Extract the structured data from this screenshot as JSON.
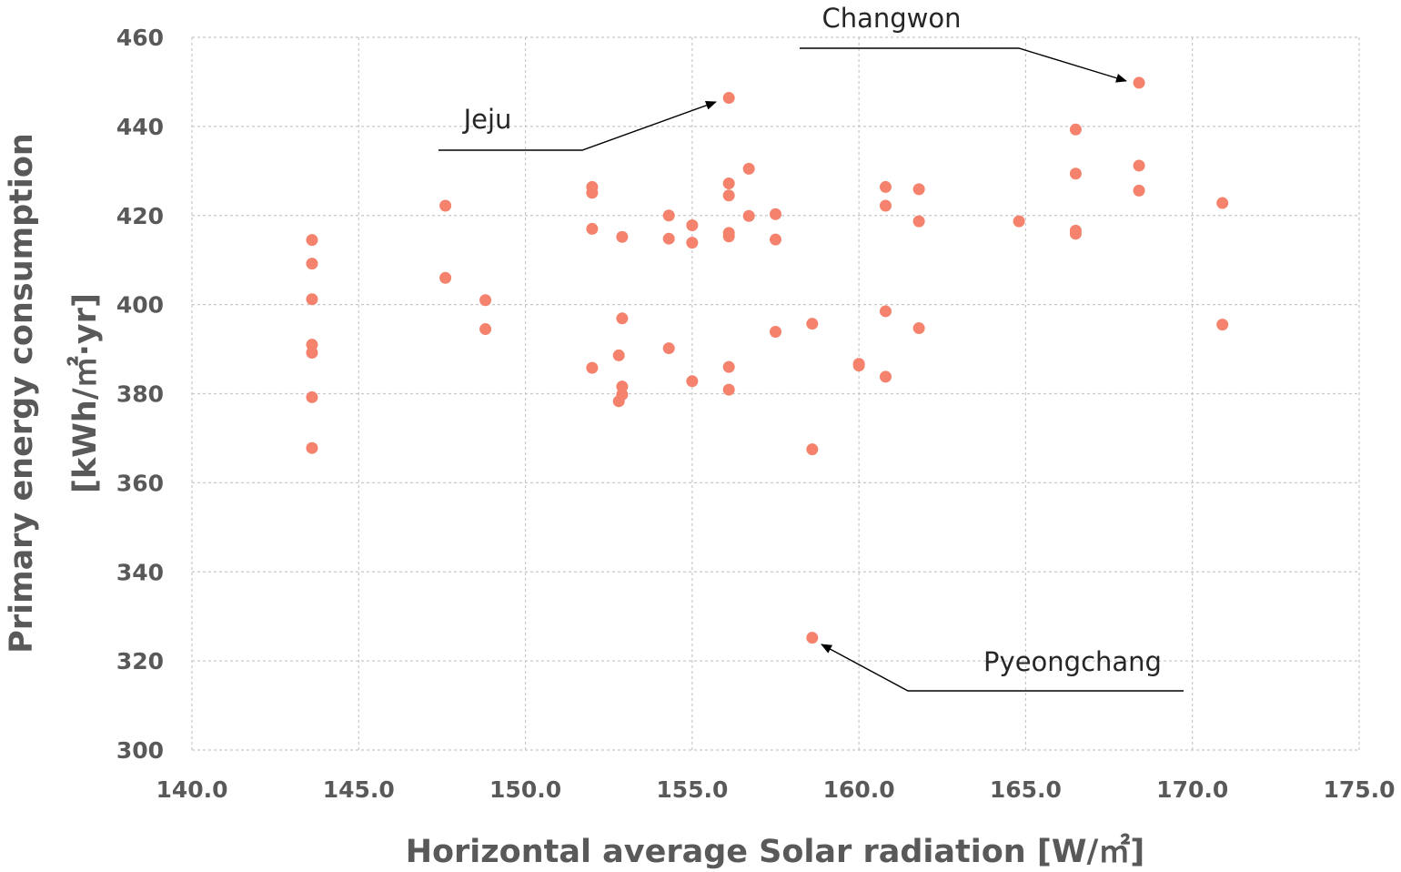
{
  "chart_data": {
    "type": "scatter",
    "xlabel": "Horizontal average Solar radiation [W/㎡]",
    "ylabel_line1": "Primary energy consumption",
    "ylabel_line2": "[kWh/㎡·yr]",
    "xlim": [
      140,
      175
    ],
    "ylim": [
      300,
      460
    ],
    "x_ticks": [
      "140.0",
      "145.0",
      "150.0",
      "155.0",
      "160.0",
      "165.0",
      "170.0",
      "175.0"
    ],
    "y_ticks": [
      "300",
      "320",
      "340",
      "360",
      "380",
      "400",
      "420",
      "440",
      "460"
    ],
    "grid": true,
    "marker_color": "#f4826d",
    "points": [
      {
        "x": 143.6,
        "y": 414.5
      },
      {
        "x": 143.6,
        "y": 409.2
      },
      {
        "x": 143.6,
        "y": 401.2
      },
      {
        "x": 143.6,
        "y": 391.0
      },
      {
        "x": 143.6,
        "y": 389.2
      },
      {
        "x": 143.6,
        "y": 379.2
      },
      {
        "x": 143.6,
        "y": 367.8
      },
      {
        "x": 147.6,
        "y": 422.2
      },
      {
        "x": 147.6,
        "y": 406.0
      },
      {
        "x": 148.8,
        "y": 401.0
      },
      {
        "x": 148.8,
        "y": 394.5
      },
      {
        "x": 152.0,
        "y": 426.4
      },
      {
        "x": 152.0,
        "y": 425.1
      },
      {
        "x": 152.0,
        "y": 417.0
      },
      {
        "x": 152.0,
        "y": 385.8
      },
      {
        "x": 152.8,
        "y": 388.6
      },
      {
        "x": 152.8,
        "y": 378.3
      },
      {
        "x": 152.9,
        "y": 415.2
      },
      {
        "x": 152.9,
        "y": 396.9
      },
      {
        "x": 152.9,
        "y": 381.6
      },
      {
        "x": 152.9,
        "y": 379.8
      },
      {
        "x": 154.3,
        "y": 420.0
      },
      {
        "x": 154.3,
        "y": 414.8
      },
      {
        "x": 154.3,
        "y": 390.2
      },
      {
        "x": 155.0,
        "y": 417.8
      },
      {
        "x": 155.0,
        "y": 413.9
      },
      {
        "x": 155.0,
        "y": 382.8
      },
      {
        "x": 156.1,
        "y": 446.4
      },
      {
        "x": 156.1,
        "y": 427.2
      },
      {
        "x": 156.1,
        "y": 424.5
      },
      {
        "x": 156.1,
        "y": 416.1
      },
      {
        "x": 156.1,
        "y": 415.3
      },
      {
        "x": 156.1,
        "y": 386.0
      },
      {
        "x": 156.1,
        "y": 380.9
      },
      {
        "x": 156.7,
        "y": 430.5
      },
      {
        "x": 156.7,
        "y": 419.9
      },
      {
        "x": 157.5,
        "y": 420.3
      },
      {
        "x": 157.5,
        "y": 414.6
      },
      {
        "x": 157.5,
        "y": 393.9
      },
      {
        "x": 158.6,
        "y": 395.7
      },
      {
        "x": 158.6,
        "y": 367.5
      },
      {
        "x": 158.6,
        "y": 325.2
      },
      {
        "x": 160.0,
        "y": 386.7
      },
      {
        "x": 160.0,
        "y": 386.3
      },
      {
        "x": 160.8,
        "y": 426.4
      },
      {
        "x": 160.8,
        "y": 422.2
      },
      {
        "x": 160.8,
        "y": 398.5
      },
      {
        "x": 160.8,
        "y": 383.8
      },
      {
        "x": 161.8,
        "y": 425.9
      },
      {
        "x": 161.8,
        "y": 418.7
      },
      {
        "x": 161.8,
        "y": 394.7
      },
      {
        "x": 164.8,
        "y": 418.7
      },
      {
        "x": 166.5,
        "y": 439.3
      },
      {
        "x": 166.5,
        "y": 429.4
      },
      {
        "x": 166.5,
        "y": 416.6
      },
      {
        "x": 166.5,
        "y": 415.9
      },
      {
        "x": 168.4,
        "y": 449.8
      },
      {
        "x": 168.4,
        "y": 431.2
      },
      {
        "x": 168.4,
        "y": 425.6
      },
      {
        "x": 170.9,
        "y": 422.8
      },
      {
        "x": 170.9,
        "y": 395.5
      }
    ],
    "annotations": [
      {
        "label": "Changwon",
        "x": 168.4,
        "y": 449.8
      },
      {
        "label": "Jeju",
        "x": 156.1,
        "y": 446.4
      },
      {
        "label": "Pyeongchang",
        "x": 158.6,
        "y": 325.2
      }
    ]
  }
}
